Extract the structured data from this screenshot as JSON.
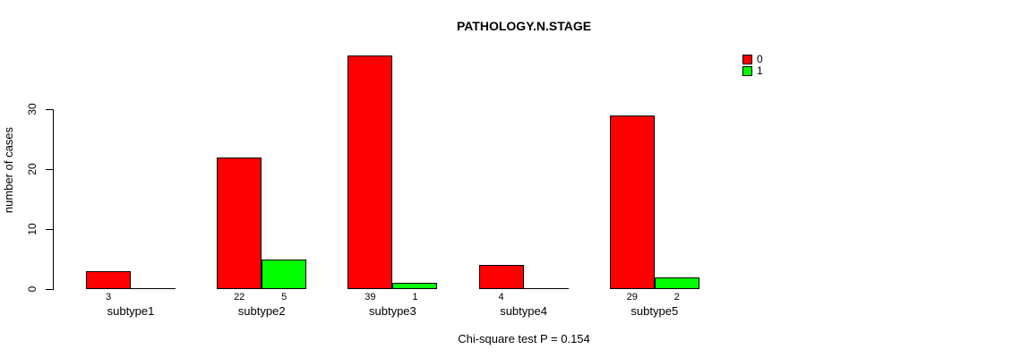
{
  "chart_data": {
    "type": "bar",
    "title": "PATHOLOGY.N.STAGE",
    "categories": [
      "subtype1",
      "subtype2",
      "subtype3",
      "subtype4",
      "subtype5"
    ],
    "series": [
      {
        "name": "0",
        "color": "#ff0000",
        "values": [
          3,
          22,
          39,
          4,
          29
        ],
        "labels": [
          "3",
          "22",
          "39",
          "4",
          "29"
        ]
      },
      {
        "name": "1",
        "color": "#00ff00",
        "values": [
          0,
          5,
          1,
          0,
          2
        ],
        "labels": [
          "",
          "5",
          "1",
          "",
          "2"
        ]
      }
    ],
    "xlabel": "",
    "ylabel": "number of cases",
    "yticks": [
      0,
      10,
      20,
      30
    ],
    "ylim": [
      0,
      40
    ],
    "grid": false,
    "legend": {
      "position": "top-right",
      "entries": [
        "0",
        "1"
      ]
    },
    "annotation": "Chi-square test P = 0.154"
  }
}
